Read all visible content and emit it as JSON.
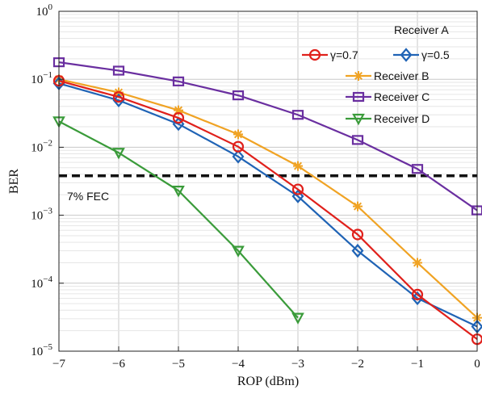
{
  "chart_data": {
    "type": "line",
    "title": "",
    "xlabel": "ROP (dBm)",
    "ylabel": "BER",
    "x_scale": "linear",
    "y_scale": "log",
    "xlim": [
      -7,
      0
    ],
    "ylim": [
      1e-05,
      1
    ],
    "x_ticks": [
      -7,
      -6,
      -5,
      -4,
      -3,
      -2,
      -1,
      0
    ],
    "x_tick_labels": [
      "−7",
      "−6",
      "−5",
      "−4",
      "−3",
      "−2",
      "−1",
      "0"
    ],
    "y_ticks": [
      1,
      0.1,
      0.01,
      0.001,
      0.0001,
      1e-05
    ],
    "y_tick_labels": [
      {
        "base": "10",
        "exp": "0"
      },
      {
        "base": "10",
        "exp": "−1"
      },
      {
        "base": "10",
        "exp": "−2"
      },
      {
        "base": "10",
        "exp": "−3"
      },
      {
        "base": "10",
        "exp": "−4"
      },
      {
        "base": "10",
        "exp": "−5"
      }
    ],
    "grid": true,
    "legend_position": "top-right",
    "legend_title": "Receiver A",
    "series": [
      {
        "name": "γ=0.7",
        "color": "#e0201b",
        "marker": "circle",
        "x": [
          -7,
          -6,
          -5,
          -4,
          -3,
          -2,
          -1,
          0
        ],
        "y": [
          0.095,
          0.055,
          0.027,
          0.0102,
          0.0024,
          0.00052,
          6.8e-05,
          1.5e-05
        ]
      },
      {
        "name": "γ=0.5",
        "color": "#1f63b5",
        "marker": "diamond",
        "x": [
          -7,
          -6,
          -5,
          -4,
          -3,
          -2,
          -1,
          0
        ],
        "y": [
          0.087,
          0.049,
          0.022,
          0.0073,
          0.0019,
          0.0003,
          6e-05,
          2.3e-05
        ]
      },
      {
        "name": "Receiver B",
        "color": "#f0a324",
        "marker": "asterisk",
        "x": [
          -7,
          -6,
          -5,
          -4,
          -3,
          -2,
          -1,
          0
        ],
        "y": [
          0.1,
          0.064,
          0.035,
          0.0155,
          0.0053,
          0.00135,
          0.0002,
          3.1e-05
        ]
      },
      {
        "name": "Receiver C",
        "color": "#6a2fa0",
        "marker": "square",
        "x": [
          -7,
          -6,
          -5,
          -4,
          -3,
          -2,
          -1,
          0
        ],
        "y": [
          0.178,
          0.134,
          0.093,
          0.058,
          0.03,
          0.0128,
          0.0048,
          0.00118
        ]
      },
      {
        "name": "Receiver D",
        "color": "#3a9b3a",
        "marker": "triangle-down",
        "x": [
          -7,
          -6,
          -5,
          -4,
          -3
        ],
        "y": [
          0.024,
          0.0083,
          0.0023,
          0.0003,
          3.1e-05
        ]
      }
    ],
    "annotations": [
      {
        "text": "7% FEC",
        "y": 0.0038,
        "line_style": "dashed",
        "line_color": "#111111"
      }
    ]
  }
}
